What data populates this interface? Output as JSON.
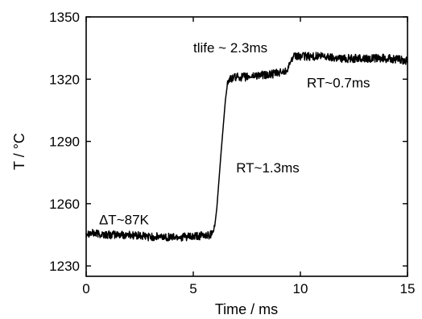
{
  "chart_data": {
    "type": "line",
    "title": "",
    "xlabel": "Time / ms",
    "ylabel": "T / °C",
    "xlim": [
      0,
      15
    ],
    "ylim": [
      1225,
      1350
    ],
    "xticks": [
      0,
      5,
      10,
      15
    ],
    "xtick_labels": [
      "0",
      "5",
      "10",
      "15"
    ],
    "yticks": [
      1230,
      1260,
      1290,
      1320,
      1350
    ],
    "ytick_labels": [
      "1230",
      "1260",
      "1290",
      "1320",
      "1350"
    ],
    "grid": false,
    "legend": "none",
    "series": [
      {
        "color": "#000000",
        "x": [
          0.0,
          1.0,
          2.0,
          3.0,
          4.0,
          5.0,
          5.8,
          6.0,
          6.1,
          6.3,
          6.5,
          6.6,
          6.7,
          7.0,
          7.5,
          8.0,
          8.5,
          9.0,
          9.3,
          9.5,
          9.6,
          9.8,
          10.0,
          10.5,
          11.0,
          12.0,
          13.0,
          14.0,
          15.0
        ],
        "y": [
          1246,
          1245,
          1245,
          1244,
          1244,
          1244,
          1245,
          1249,
          1258,
          1285,
          1310,
          1318,
          1320,
          1321,
          1321,
          1322,
          1322,
          1323,
          1324,
          1327,
          1330,
          1331,
          1331,
          1331,
          1331,
          1330,
          1330,
          1330,
          1329
        ]
      }
    ],
    "annotations": [
      {
        "text": "tlife ~ 2.3ms",
        "x": 5.0,
        "y": 1333
      },
      {
        "text": "RT~0.7ms",
        "x": 10.3,
        "y": 1316
      },
      {
        "text": "RT~1.3ms",
        "x": 7.0,
        "y": 1275
      },
      {
        "text": "ΔT~87K",
        "x": 0.6,
        "y": 1250
      }
    ]
  }
}
